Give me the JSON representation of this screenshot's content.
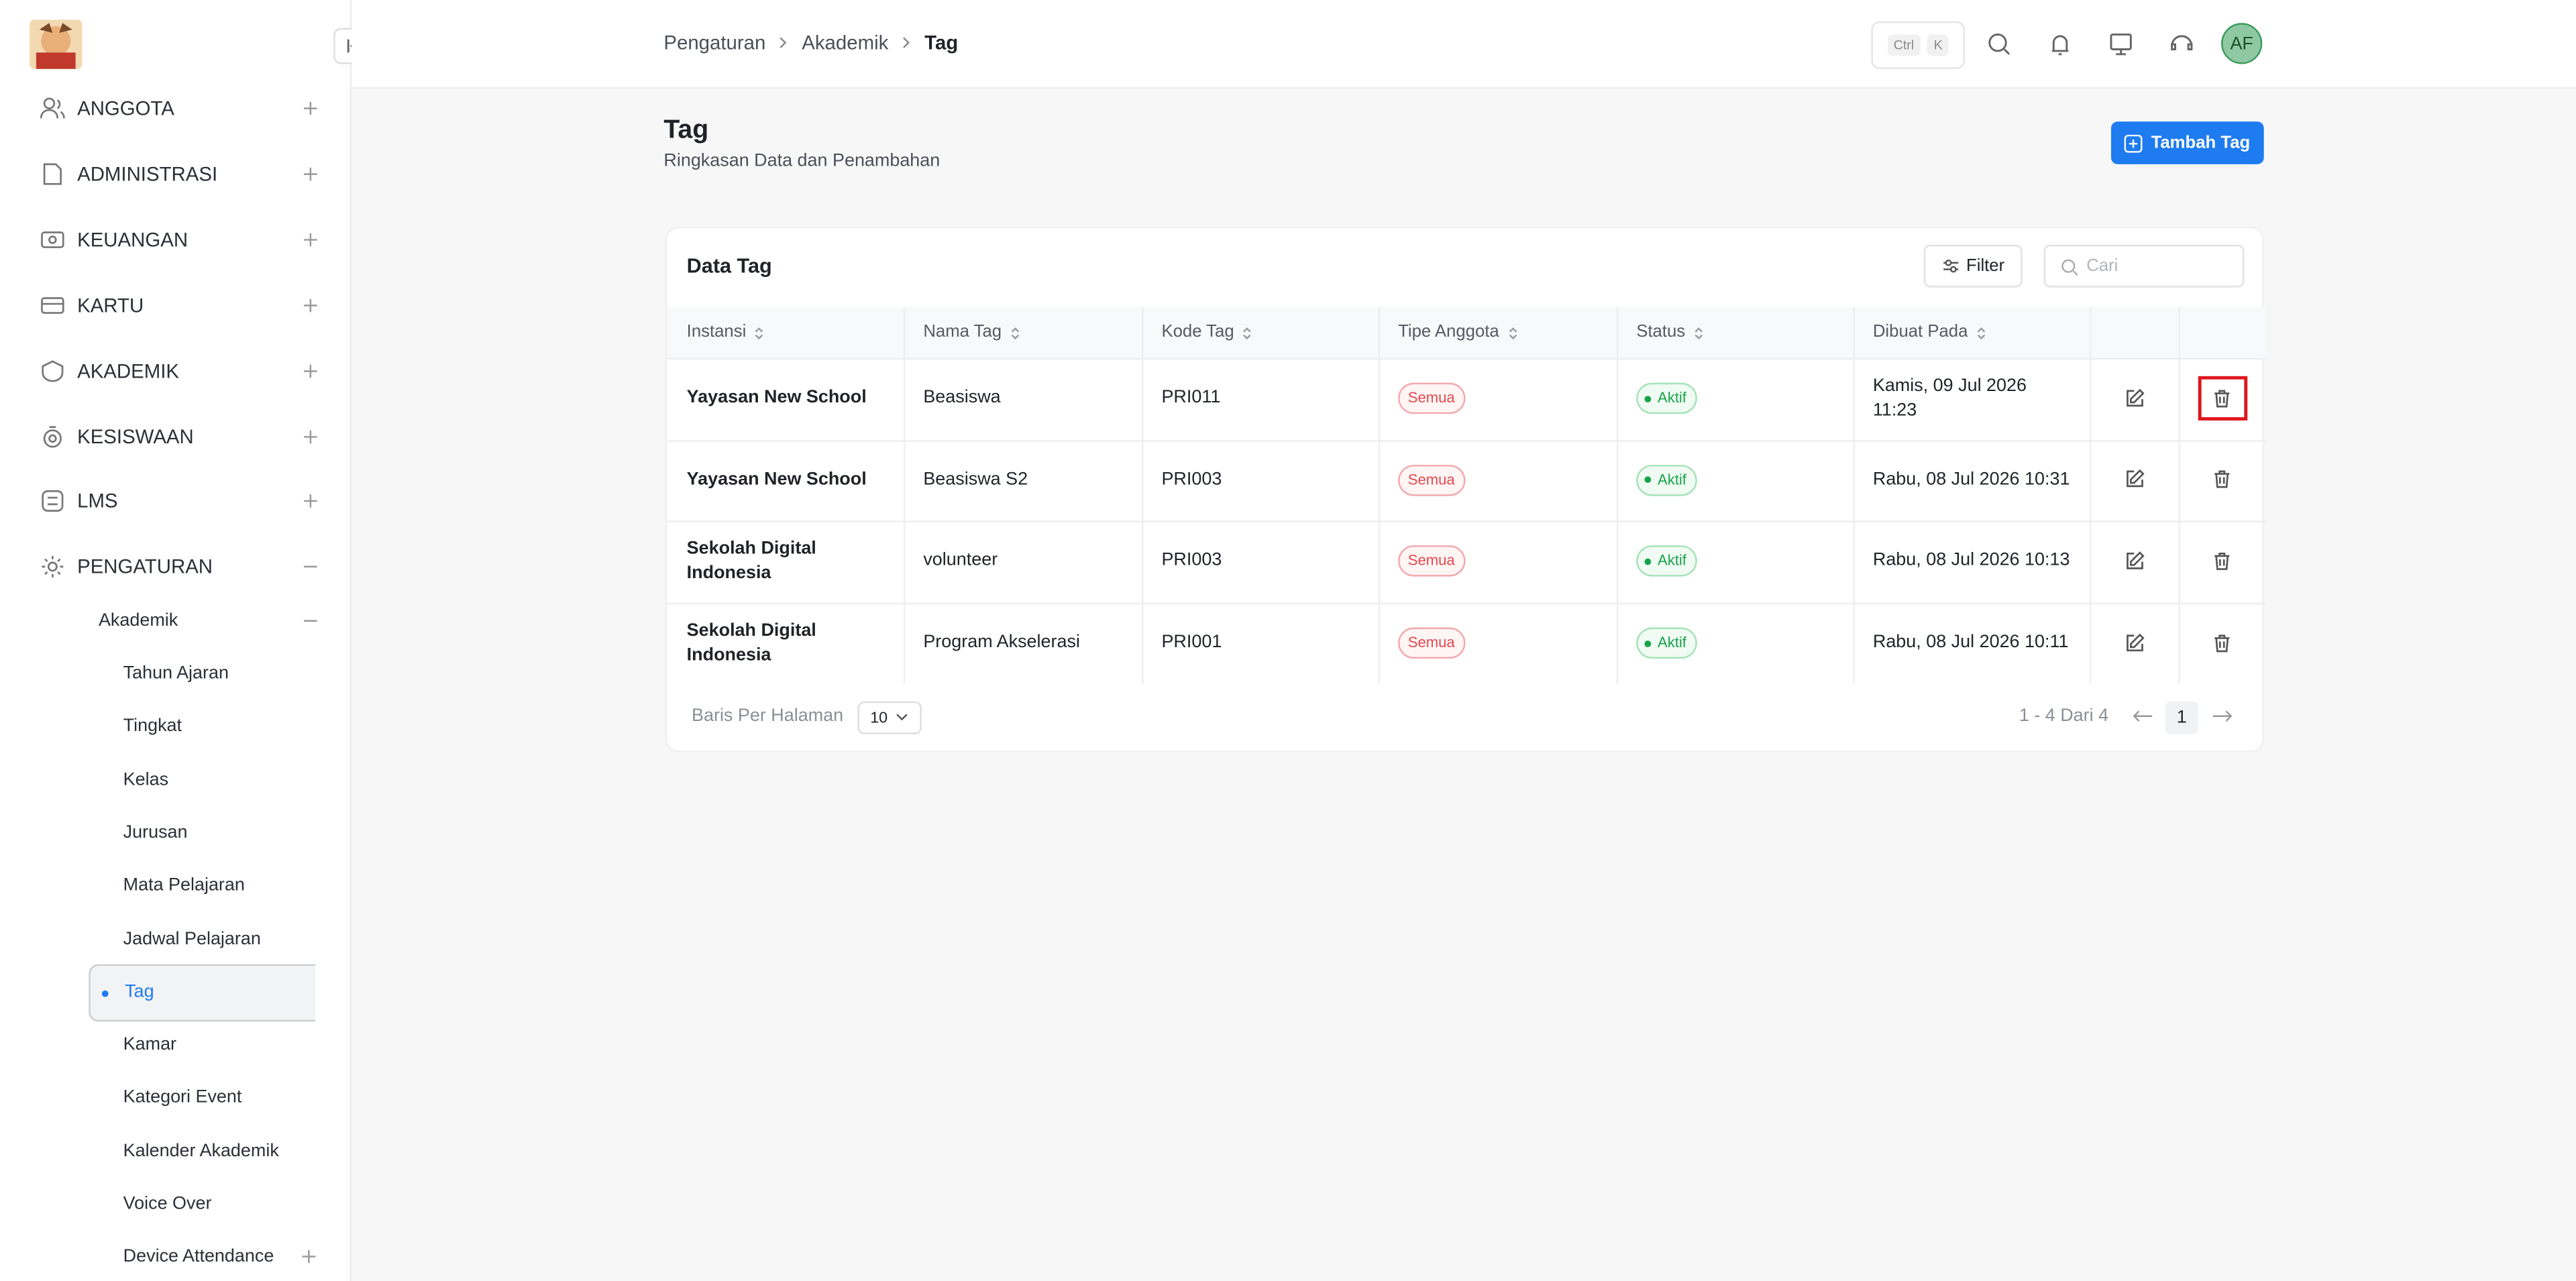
{
  "sidebar": {
    "menu": [
      "ANGGOTA",
      "ADMINISTRASI",
      "KEUANGAN",
      "KARTU",
      "AKADEMIK",
      "KESISWAAN",
      "LMS",
      "PENGATURAN"
    ],
    "submenu": {
      "label": "Akademik",
      "items": [
        "Tahun Ajaran",
        "Tingkat",
        "Kelas",
        "Jurusan",
        "Mata Pelajaran",
        "Jadwal Pelajaran",
        "Tag",
        "Kamar",
        "Kategori Event",
        "Kalender Akademik",
        "Voice Over",
        "Device Attendance"
      ]
    }
  },
  "header": {
    "breadcrumb": [
      "Pengaturan",
      "Akademik",
      "Tag"
    ],
    "shortcut": [
      "Ctrl",
      "K"
    ],
    "avatar": "AF"
  },
  "page": {
    "title": "Tag",
    "subtitle": "Ringkasan Data dan Penambahan",
    "add_button": "Tambah Tag"
  },
  "table": {
    "title": "Data Tag",
    "filter": "Filter",
    "search_placeholder": "Cari",
    "columns": [
      "Instansi",
      "Nama Tag",
      "Kode Tag",
      "Tipe Anggota",
      "Status",
      "Dibuat Pada"
    ],
    "rows": [
      [
        "Yayasan New School",
        "Beasiswa",
        "PRI011",
        "Semua",
        "Aktif",
        "Kamis, 09 Jul 2026 11:23"
      ],
      [
        "Yayasan New School",
        "Beasiswa S2",
        "PRI003",
        "Semua",
        "Aktif",
        "Rabu, 08 Jul 2026 10:31"
      ],
      [
        "Sekolah Digital Indonesia",
        "volunteer",
        "PRI003",
        "Semua",
        "Aktif",
        "Rabu, 08 Jul 2026 10:13"
      ],
      [
        "Sekolah Digital Indonesia",
        "Program Akselerasi",
        "PRI001",
        "Semua",
        "Aktif",
        "Rabu, 08 Jul 2026 10:11"
      ]
    ]
  },
  "pagination": {
    "rows_per_page_label": "Baris Per Halaman",
    "rows_per_page": 10,
    "range": "1 - 4 Dari 4",
    "page": 1
  }
}
